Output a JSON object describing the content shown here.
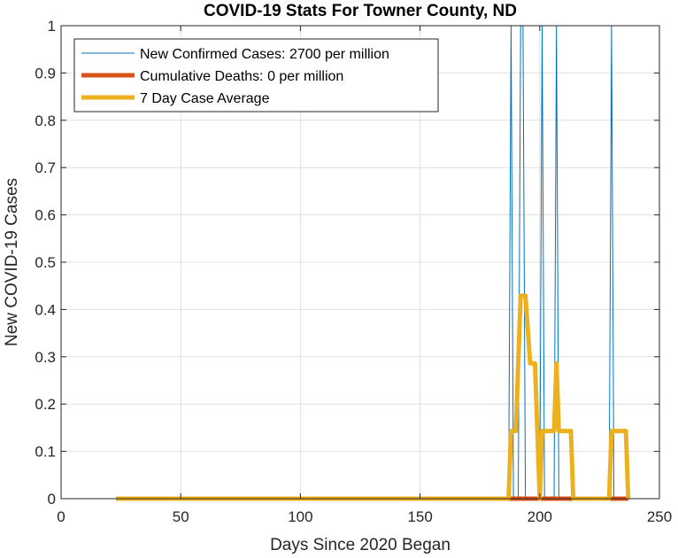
{
  "chart_data": {
    "type": "line",
    "title": "COVID-19 Stats For Towner County, ND",
    "xlabel": "Days Since 2020 Began",
    "ylabel": "New COVID-19 Cases",
    "xlim": [
      0,
      250
    ],
    "ylim": [
      0,
      1
    ],
    "xticks": [
      0,
      50,
      100,
      150,
      200,
      250
    ],
    "yticks": [
      0,
      0.1,
      0.2,
      0.3,
      0.4,
      0.5,
      0.6,
      0.7,
      0.8,
      0.9,
      1
    ],
    "ytick_labels": [
      "0",
      "0.1",
      "0.2",
      "0.3",
      "0.4",
      "0.5",
      "0.6",
      "0.7",
      "0.8",
      "0.9",
      "1"
    ],
    "grid": true,
    "legend_position": "top-left",
    "series": [
      {
        "name": "New Confirmed Cases: 2700 per million",
        "color": "#0072bd",
        "points": [
          [
            23,
            0
          ],
          [
            187,
            0
          ],
          [
            188,
            1
          ],
          [
            189,
            0
          ],
          [
            191,
            0
          ],
          [
            192,
            1
          ],
          [
            193,
            1
          ],
          [
            194,
            0
          ],
          [
            200,
            0
          ],
          [
            201,
            1
          ],
          [
            202,
            0
          ],
          [
            206,
            0
          ],
          [
            207,
            1
          ],
          [
            208,
            0
          ],
          [
            229,
            0
          ],
          [
            230,
            1
          ],
          [
            231,
            0
          ],
          [
            237,
            0
          ]
        ]
      },
      {
        "name": "Cumulative Deaths: 0 per million",
        "color": "#d95319",
        "points": [
          [
            23,
            0
          ],
          [
            237,
            0
          ]
        ]
      },
      {
        "name": "7 Day Case Average",
        "color": "#edb120",
        "points": [
          [
            23,
            0
          ],
          [
            187,
            0
          ],
          [
            188,
            0.143
          ],
          [
            190,
            0.143
          ],
          [
            192,
            0.429
          ],
          [
            194,
            0.429
          ],
          [
            196,
            0.286
          ],
          [
            198,
            0.286
          ],
          [
            200,
            0
          ],
          [
            201,
            0.143
          ],
          [
            206,
            0.143
          ],
          [
            207,
            0.286
          ],
          [
            208,
            0.143
          ],
          [
            213,
            0.143
          ],
          [
            214,
            0
          ],
          [
            229,
            0
          ],
          [
            230,
            0.143
          ],
          [
            236,
            0.143
          ],
          [
            237,
            0
          ]
        ]
      }
    ]
  }
}
